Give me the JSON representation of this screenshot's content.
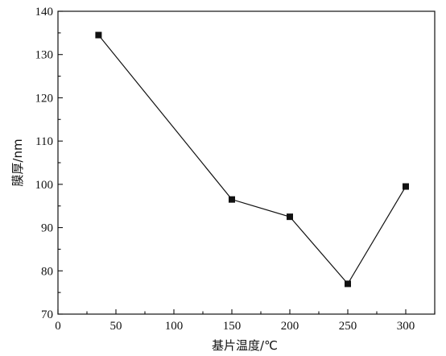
{
  "chart_data": {
    "type": "line",
    "title": "",
    "xlabel": "基片温度/℃",
    "ylabel": "膜厚/nm",
    "xlim": [
      0,
      325
    ],
    "ylim": [
      70,
      140
    ],
    "xticks": [
      0,
      50,
      100,
      150,
      200,
      250,
      300
    ],
    "yticks": [
      70,
      80,
      90,
      100,
      110,
      120,
      130,
      140
    ],
    "x_tick_labels": [
      "0",
      "50",
      "100",
      "150",
      "200",
      "250",
      "300"
    ],
    "y_tick_labels": [
      "70",
      "80",
      "90",
      "100",
      "110",
      "120",
      "130",
      "140"
    ],
    "grid": false,
    "series": [
      {
        "marker": "square",
        "color": "#111111",
        "points": [
          {
            "x": 35,
            "y": 134.5
          },
          {
            "x": 150,
            "y": 96.5
          },
          {
            "x": 200,
            "y": 92.5
          },
          {
            "x": 250,
            "y": 77
          },
          {
            "x": 300,
            "y": 99.5
          }
        ]
      }
    ]
  }
}
